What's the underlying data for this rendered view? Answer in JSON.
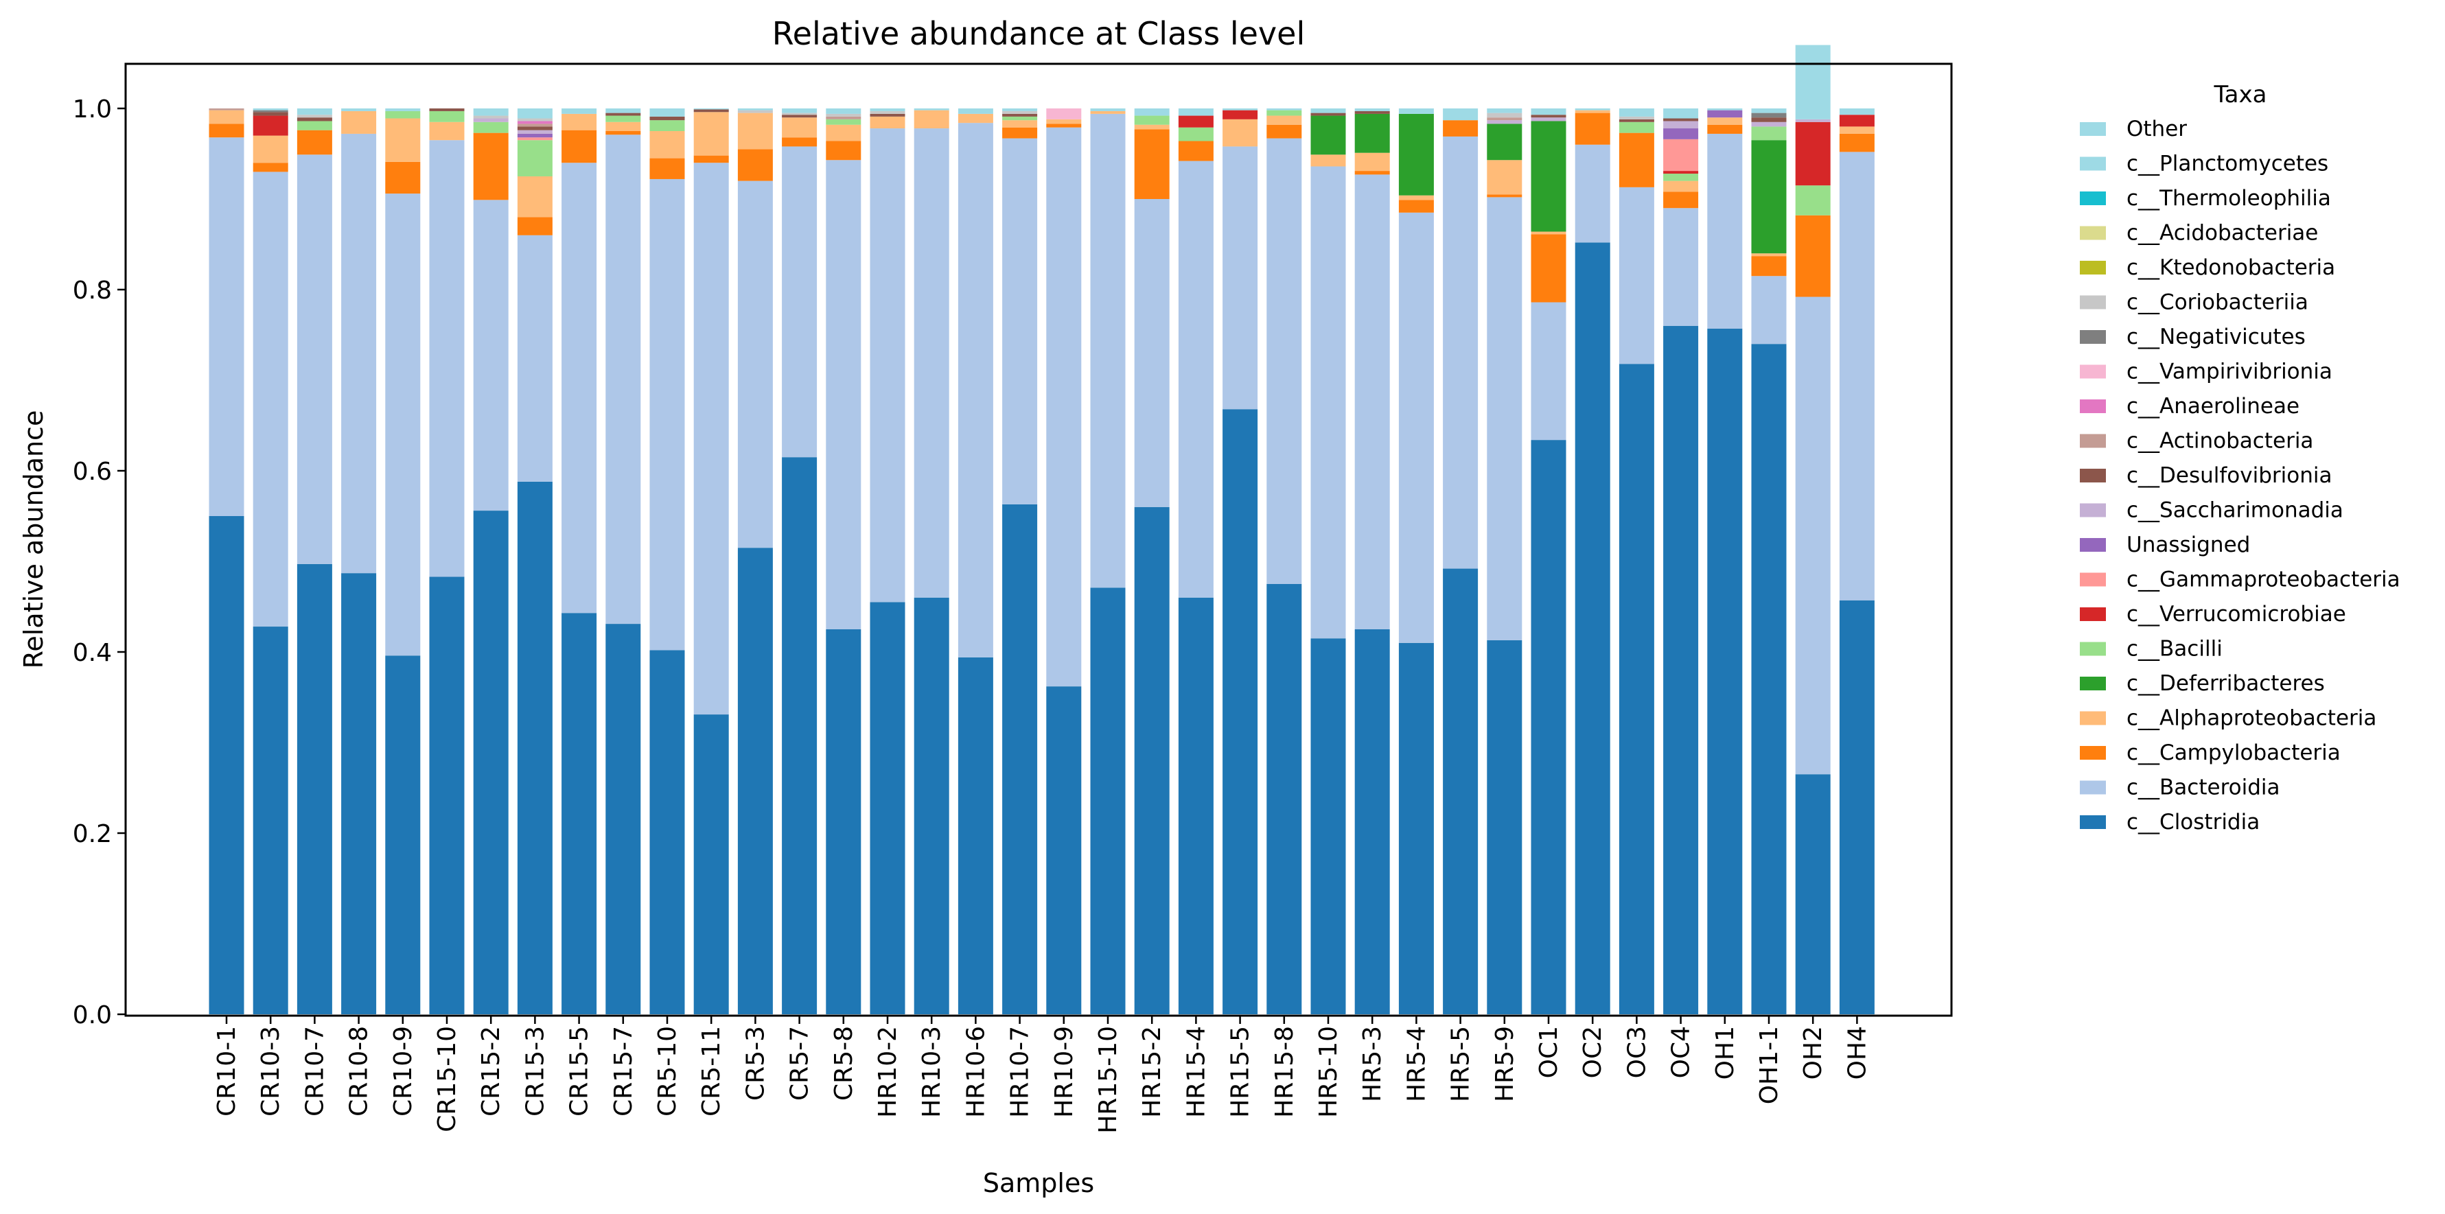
{
  "chart_data": {
    "type": "bar",
    "stacked": true,
    "title": "Relative abundance at Class level",
    "xlabel": "Samples",
    "ylabel": "Relative abundance",
    "ylim": [
      0,
      1.05
    ],
    "yticks": [
      0.0,
      0.2,
      0.4,
      0.6,
      0.8,
      1.0
    ],
    "ytick_labels": [
      "0.0",
      "0.2",
      "0.4",
      "0.6",
      "0.8",
      "1.0"
    ],
    "grid": false,
    "legend": {
      "title": "Taxa",
      "placement": "outside-right",
      "order": [
        "Other",
        "c__Planctomycetes",
        "c__Thermoleophilia",
        "c__Acidobacteriae",
        "c__Ktedonobacteria",
        "c__Coriobacteriia",
        "c__Negativicutes",
        "c__Vampirivibrionia",
        "c__Anaerolineae",
        "c__Actinobacteria",
        "c__Desulfovibrionia",
        "c__Saccharimonadia",
        "Unassigned",
        "c__Gammaproteobacteria",
        "c__Verrucomicrobiae",
        "c__Bacilli",
        "c__Deferribacteres",
        "c__Alphaproteobacteria",
        "c__Campylobacteria",
        "c__Bacteroidia",
        "c__Clostridia"
      ]
    },
    "categories": [
      "CR10-1",
      "CR10-3",
      "CR10-7",
      "CR10-8",
      "CR10-9",
      "CR15-10",
      "CR15-2",
      "CR15-3",
      "CR15-5",
      "CR15-7",
      "CR5-10",
      "CR5-11",
      "CR5-3",
      "CR5-7",
      "CR5-8",
      "HR10-2",
      "HR10-3",
      "HR10-6",
      "HR10-7",
      "HR10-9",
      "HR15-10",
      "HR15-2",
      "HR15-4",
      "HR15-5",
      "HR15-8",
      "HR5-10",
      "HR5-3",
      "HR5-4",
      "HR5-5",
      "HR5-9",
      "OC1",
      "OC2",
      "OC3",
      "OC4",
      "OH1",
      "OH1-1",
      "OH2",
      "OH4"
    ],
    "series": [
      {
        "name": "c__Clostridia",
        "color": "#1f77b4",
        "values": [
          0.55,
          0.428,
          0.497,
          0.487,
          0.396,
          0.483,
          0.556,
          0.588,
          0.443,
          0.431,
          0.402,
          0.331,
          0.515,
          0.615,
          0.425,
          0.455,
          0.46,
          0.394,
          0.563,
          0.362,
          0.471,
          0.56,
          0.46,
          0.668,
          0.475,
          0.415,
          0.425,
          0.41,
          0.492,
          0.413,
          0.634,
          0.852,
          0.718,
          0.76,
          0.757,
          0.74,
          0.265,
          0.457
        ]
      },
      {
        "name": "c__Bacteroidia",
        "color": "#aec7e8",
        "values": [
          0.418,
          0.502,
          0.452,
          0.485,
          0.51,
          0.482,
          0.343,
          0.272,
          0.497,
          0.54,
          0.52,
          0.609,
          0.405,
          0.343,
          0.518,
          0.523,
          0.518,
          0.59,
          0.404,
          0.617,
          0.523,
          0.34,
          0.482,
          0.29,
          0.492,
          0.521,
          0.502,
          0.475,
          0.477,
          0.489,
          0.152,
          0.108,
          0.195,
          0.13,
          0.215,
          0.075,
          0.527,
          0.495
        ]
      },
      {
        "name": "c__Campylobacteria",
        "color": "#ff7f0e",
        "values": [
          0.015,
          0.01,
          0.027,
          0.0,
          0.035,
          0.0,
          0.074,
          0.02,
          0.036,
          0.004,
          0.023,
          0.008,
          0.035,
          0.01,
          0.021,
          0.0,
          0.0,
          0.0,
          0.012,
          0.004,
          0.0,
          0.077,
          0.022,
          0.0,
          0.015,
          0.0,
          0.004,
          0.014,
          0.018,
          0.003,
          0.075,
          0.035,
          0.06,
          0.018,
          0.01,
          0.022,
          0.09,
          0.02
        ]
      },
      {
        "name": "c__Alphaproteobacteria",
        "color": "#ffbb78",
        "values": [
          0.015,
          0.03,
          0.0,
          0.025,
          0.048,
          0.02,
          0.0,
          0.045,
          0.018,
          0.01,
          0.03,
          0.048,
          0.04,
          0.022,
          0.018,
          0.013,
          0.02,
          0.01,
          0.008,
          0.005,
          0.003,
          0.005,
          0.0,
          0.03,
          0.01,
          0.013,
          0.02,
          0.005,
          0.0,
          0.038,
          0.003,
          0.003,
          0.0,
          0.012,
          0.008,
          0.003,
          0.0,
          0.008
        ]
      },
      {
        "name": "c__Deferribacteres",
        "color": "#2ca02c",
        "values": [
          0.0,
          0.0,
          0.0,
          0.0,
          0.0,
          0.0,
          0.0,
          0.0,
          0.0,
          0.0,
          0.0,
          0.0,
          0.0,
          0.0,
          0.0,
          0.0,
          0.0,
          0.0,
          0.0,
          0.0,
          0.0,
          0.0,
          0.0,
          0.0,
          0.0,
          0.043,
          0.043,
          0.09,
          0.0,
          0.04,
          0.122,
          0.0,
          0.0,
          0.0,
          0.0,
          0.125,
          0.0,
          0.0
        ]
      },
      {
        "name": "c__Bacilli",
        "color": "#98df8a",
        "values": [
          0.0,
          0.0,
          0.01,
          0.0,
          0.008,
          0.012,
          0.012,
          0.04,
          0.0,
          0.007,
          0.012,
          0.0,
          0.0,
          0.0,
          0.006,
          0.0,
          0.0,
          0.0,
          0.004,
          0.0,
          0.0,
          0.01,
          0.015,
          0.0,
          0.006,
          0.0,
          0.0,
          0.0,
          0.0,
          0.0,
          0.0,
          0.0,
          0.012,
          0.008,
          0.0,
          0.015,
          0.033,
          0.0
        ]
      },
      {
        "name": "c__Verrucomicrobiae",
        "color": "#d62728",
        "values": [
          0.0,
          0.022,
          0.0,
          0.0,
          0.0,
          0.0,
          0.0,
          0.0,
          0.0,
          0.0,
          0.0,
          0.0,
          0.0,
          0.0,
          0.0,
          0.0,
          0.0,
          0.0,
          0.0,
          0.0,
          0.0,
          0.0,
          0.013,
          0.01,
          0.0,
          0.0,
          0.0,
          0.0,
          0.0,
          0.0,
          0.0,
          0.0,
          0.0,
          0.003,
          0.0,
          0.0,
          0.07,
          0.013
        ]
      },
      {
        "name": "c__Gammaproteobacteria",
        "color": "#ff9896",
        "values": [
          0.0,
          0.0,
          0.0,
          0.0,
          0.0,
          0.0,
          0.0,
          0.003,
          0.0,
          0.0,
          0.0,
          0.0,
          0.0,
          0.0,
          0.0,
          0.0,
          0.0,
          0.0,
          0.0,
          0.0,
          0.0,
          0.0,
          0.0,
          0.0,
          0.0,
          0.0,
          0.0,
          0.0,
          0.0,
          0.0,
          0.0,
          0.0,
          0.0,
          0.035,
          0.0,
          0.0,
          0.0,
          0.0
        ]
      },
      {
        "name": "Unassigned",
        "color": "#9467bd",
        "values": [
          0.0,
          0.0,
          0.0,
          0.0,
          0.0,
          0.0,
          0.0,
          0.004,
          0.0,
          0.0,
          0.0,
          0.0,
          0.0,
          0.0,
          0.0,
          0.0,
          0.0,
          0.0,
          0.0,
          0.0,
          0.0,
          0.0,
          0.0,
          0.0,
          0.0,
          0.0,
          0.0,
          0.0,
          0.0,
          0.0,
          0.0,
          0.0,
          0.0,
          0.012,
          0.008,
          0.0,
          0.0,
          0.0
        ]
      },
      {
        "name": "c__Saccharimonadia",
        "color": "#c5b0d5",
        "values": [
          0.0,
          0.0,
          0.0,
          0.0,
          0.0,
          0.0,
          0.004,
          0.004,
          0.0,
          0.0,
          0.0,
          0.0,
          0.0,
          0.0,
          0.0,
          0.0,
          0.0,
          0.0,
          0.0,
          0.0,
          0.0,
          0.0,
          0.0,
          0.0,
          0.0,
          0.0,
          0.0,
          0.0,
          0.0,
          0.004,
          0.004,
          0.0,
          0.0,
          0.008,
          0.0,
          0.005,
          0.003,
          0.0
        ]
      },
      {
        "name": "c__Desulfovibrionia",
        "color": "#8c564b",
        "values": [
          0.0,
          0.004,
          0.004,
          0.0,
          0.0,
          0.003,
          0.0,
          0.004,
          0.0,
          0.003,
          0.004,
          0.003,
          0.0,
          0.003,
          0.0,
          0.003,
          0.0,
          0.0,
          0.003,
          0.0,
          0.0,
          0.0,
          0.0,
          0.0,
          0.0,
          0.003,
          0.003,
          0.0,
          0.0,
          0.0,
          0.003,
          0.0,
          0.003,
          0.003,
          0.0,
          0.005,
          0.0,
          0.0
        ]
      },
      {
        "name": "c__Actinobacteria",
        "color": "#c49c94",
        "values": [
          0.002,
          0.0,
          0.0,
          0.0,
          0.0,
          0.0,
          0.0,
          0.003,
          0.0,
          0.0,
          0.0,
          0.0,
          0.0,
          0.0,
          0.003,
          0.0,
          0.0,
          0.0,
          0.0,
          0.0,
          0.0,
          0.0,
          0.0,
          0.0,
          0.0,
          0.0,
          0.0,
          0.0,
          0.0,
          0.003,
          0.0,
          0.0,
          0.0,
          0.0,
          0.0,
          0.0,
          0.0,
          0.0
        ]
      },
      {
        "name": "c__Anaerolineae",
        "color": "#e377c2",
        "values": [
          0.0,
          0.0,
          0.0,
          0.0,
          0.0,
          0.0,
          0.0,
          0.003,
          0.0,
          0.0,
          0.0,
          0.0,
          0.0,
          0.0,
          0.0,
          0.0,
          0.0,
          0.0,
          0.0,
          0.0,
          0.0,
          0.0,
          0.0,
          0.0,
          0.0,
          0.0,
          0.0,
          0.0,
          0.0,
          0.0,
          0.0,
          0.0,
          0.0,
          0.0,
          0.0,
          0.0,
          0.0,
          0.0
        ]
      },
      {
        "name": "c__Vampirivibrionia",
        "color": "#f7b6d2",
        "values": [
          0.0,
          0.0,
          0.0,
          0.0,
          0.0,
          0.0,
          0.0,
          0.0,
          0.0,
          0.0,
          0.0,
          0.0,
          0.0,
          0.0,
          0.0,
          0.0,
          0.0,
          0.0,
          0.0,
          0.012,
          0.0,
          0.0,
          0.0,
          0.0,
          0.0,
          0.0,
          0.0,
          0.0,
          0.0,
          0.0,
          0.0,
          0.0,
          0.0,
          0.0,
          0.0,
          0.0,
          0.0,
          0.0
        ]
      },
      {
        "name": "c__Negativicutes",
        "color": "#7f7f7f",
        "values": [
          0.0,
          0.002,
          0.0,
          0.0,
          0.0,
          0.0,
          0.0,
          0.0,
          0.0,
          0.0,
          0.0,
          0.0,
          0.0,
          0.0,
          0.0,
          0.0,
          0.0,
          0.0,
          0.0,
          0.0,
          0.0,
          0.0,
          0.0,
          0.0,
          0.0,
          0.0,
          0.0,
          0.0,
          0.0,
          0.0,
          0.0,
          0.0,
          0.0,
          0.0,
          0.0,
          0.005,
          0.0,
          0.0
        ]
      },
      {
        "name": "c__Coriobacteriia",
        "color": "#c7c7c7",
        "values": [
          0.0,
          0.0,
          0.003,
          0.0,
          0.0,
          0.0,
          0.003,
          0.003,
          0.0,
          0.0,
          0.0,
          0.0,
          0.003,
          0.002,
          0.003,
          0.003,
          0.0,
          0.0,
          0.003,
          0.0,
          0.0,
          0.0,
          0.0,
          0.0,
          0.0,
          0.0,
          0.0,
          0.0,
          0.0,
          0.005,
          0.0,
          0.0,
          0.003,
          0.0,
          0.0,
          0.0,
          0.0,
          0.0
        ]
      },
      {
        "name": "c__Ktedonobacteria",
        "color": "#bcbd22",
        "values": [
          0.0,
          0.0,
          0.0,
          0.0,
          0.0,
          0.0,
          0.0,
          0.0,
          0.0,
          0.0,
          0.0,
          0.0,
          0.0,
          0.0,
          0.0,
          0.0,
          0.0,
          0.0,
          0.0,
          0.0,
          0.0,
          0.0,
          0.0,
          0.0,
          0.0,
          0.0,
          0.0,
          0.0,
          0.0,
          0.0,
          0.0,
          0.0,
          0.0,
          0.0,
          0.0,
          0.0,
          0.0,
          0.0
        ]
      },
      {
        "name": "c__Acidobacteriae",
        "color": "#dbdb8d",
        "values": [
          0.0,
          0.0,
          0.0,
          0.0,
          0.0,
          0.0,
          0.0,
          0.0,
          0.0,
          0.0,
          0.0,
          0.0,
          0.0,
          0.0,
          0.0,
          0.0,
          0.0,
          0.0,
          0.0,
          0.0,
          0.0,
          0.0,
          0.0,
          0.0,
          0.0,
          0.0,
          0.0,
          0.0,
          0.0,
          0.0,
          0.0,
          0.0,
          0.0,
          0.0,
          0.0,
          0.0,
          0.0,
          0.0
        ]
      },
      {
        "name": "c__Thermoleophilia",
        "color": "#17becf",
        "values": [
          0.0,
          0.0,
          0.0,
          0.0,
          0.0,
          0.0,
          0.0,
          0.0,
          0.0,
          0.0,
          0.0,
          0.0,
          0.0,
          0.0,
          0.0,
          0.0,
          0.0,
          0.0,
          0.0,
          0.0,
          0.0,
          0.0,
          0.0,
          0.0,
          0.0,
          0.0,
          0.0,
          0.0,
          0.0,
          0.0,
          0.0,
          0.0,
          0.0,
          0.0,
          0.0,
          0.0,
          0.0,
          0.0
        ]
      },
      {
        "name": "c__Planctomycetes",
        "color": "#9edae5",
        "values": [
          0.0,
          0.0,
          0.0,
          0.0,
          0.0,
          0.0,
          0.0,
          0.0,
          0.0,
          0.0,
          0.0,
          0.0,
          0.0,
          0.0,
          0.0,
          0.0,
          0.0,
          0.0,
          0.0,
          0.0,
          0.0,
          0.0,
          0.0,
          0.0,
          0.0,
          0.0,
          0.0,
          0.0,
          0.0,
          0.0,
          0.0,
          0.0,
          0.0,
          0.0,
          0.0,
          0.0,
          0.0,
          0.0
        ]
      },
      {
        "name": "Other",
        "color": "#9edae5",
        "values": [
          0.0,
          0.002,
          0.007,
          0.003,
          0.003,
          0.0,
          0.008,
          0.011,
          0.006,
          0.005,
          0.009,
          0.001,
          0.002,
          0.005,
          0.006,
          0.003,
          0.002,
          0.006,
          0.003,
          0.0,
          0.003,
          0.008,
          0.008,
          0.002,
          0.002,
          0.005,
          0.003,
          0.006,
          0.013,
          0.005,
          0.007,
          0.002,
          0.009,
          0.011,
          0.002,
          0.005,
          0.082,
          0.007
        ]
      }
    ]
  }
}
